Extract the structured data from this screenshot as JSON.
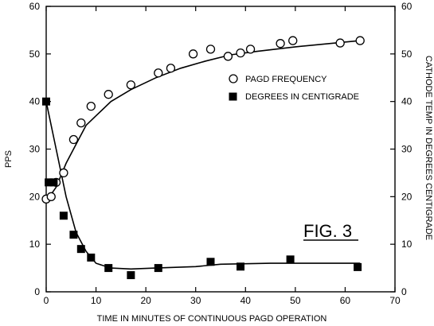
{
  "chart_data": {
    "type": "scatter",
    "figure_label": "FIG. 3",
    "xlabel": "TIME IN MINUTES OF CONTINUOUS PAGD OPERATION",
    "ylabel": "PPS",
    "y2label": "CATHODE TEMP  IN DEGREES CENTIGRADE",
    "xlim": [
      0,
      70
    ],
    "ylim": [
      0,
      60
    ],
    "y2lim": [
      0,
      60
    ],
    "xticks": [
      0,
      10,
      20,
      30,
      40,
      50,
      60,
      70
    ],
    "yticks": [
      0,
      10,
      20,
      30,
      40,
      50,
      60
    ],
    "y2ticks": [
      0,
      10,
      20,
      30,
      40,
      50,
      60
    ],
    "legend_position": "right",
    "series": [
      {
        "name": "PAGD FREQUENCY",
        "axis": "left",
        "marker": "open-circle",
        "points": [
          [
            0,
            19.5
          ],
          [
            1,
            20
          ],
          [
            2,
            23
          ],
          [
            3.5,
            25
          ],
          [
            5.5,
            32
          ],
          [
            7,
            35.5
          ],
          [
            9,
            39
          ],
          [
            12.5,
            41.5
          ],
          [
            17,
            43.5
          ],
          [
            22.5,
            46
          ],
          [
            25,
            47
          ],
          [
            29.5,
            50
          ],
          [
            33,
            51
          ],
          [
            36.5,
            49.5
          ],
          [
            39,
            50.2
          ],
          [
            41,
            51
          ],
          [
            47,
            52.2
          ],
          [
            49.5,
            52.8
          ],
          [
            59,
            52.3
          ],
          [
            63,
            52.8
          ]
        ],
        "fit": [
          [
            0,
            19
          ],
          [
            2,
            22
          ],
          [
            4,
            27
          ],
          [
            6,
            31
          ],
          [
            8,
            35
          ],
          [
            10,
            37
          ],
          [
            13,
            40
          ],
          [
            17,
            42.5
          ],
          [
            22,
            45
          ],
          [
            27,
            47
          ],
          [
            32,
            48.5
          ],
          [
            37,
            49.8
          ],
          [
            42,
            50.5
          ],
          [
            50,
            51.5
          ],
          [
            63,
            52.8
          ]
        ]
      },
      {
        "name": "DEGREES IN CENTIGRADE",
        "axis": "right",
        "marker": "filled-square",
        "points": [
          [
            0,
            40
          ],
          [
            0.5,
            23
          ],
          [
            1.5,
            23
          ],
          [
            3.5,
            16
          ],
          [
            5.5,
            12
          ],
          [
            7,
            9
          ],
          [
            9,
            7.2
          ],
          [
            12.5,
            5
          ],
          [
            17,
            3.5
          ],
          [
            22.5,
            5
          ],
          [
            33,
            6.3
          ],
          [
            39,
            5.3
          ],
          [
            49,
            6.8
          ],
          [
            62.5,
            5.2
          ]
        ],
        "fit": [
          [
            0,
            40
          ],
          [
            2,
            30
          ],
          [
            4,
            20
          ],
          [
            6,
            12.5
          ],
          [
            8,
            8.5
          ],
          [
            10,
            6
          ],
          [
            13,
            5
          ],
          [
            17,
            4.8
          ],
          [
            22,
            5
          ],
          [
            30,
            5.3
          ],
          [
            35,
            5.8
          ],
          [
            45,
            6
          ],
          [
            55,
            6
          ],
          [
            63,
            6
          ]
        ]
      }
    ]
  }
}
